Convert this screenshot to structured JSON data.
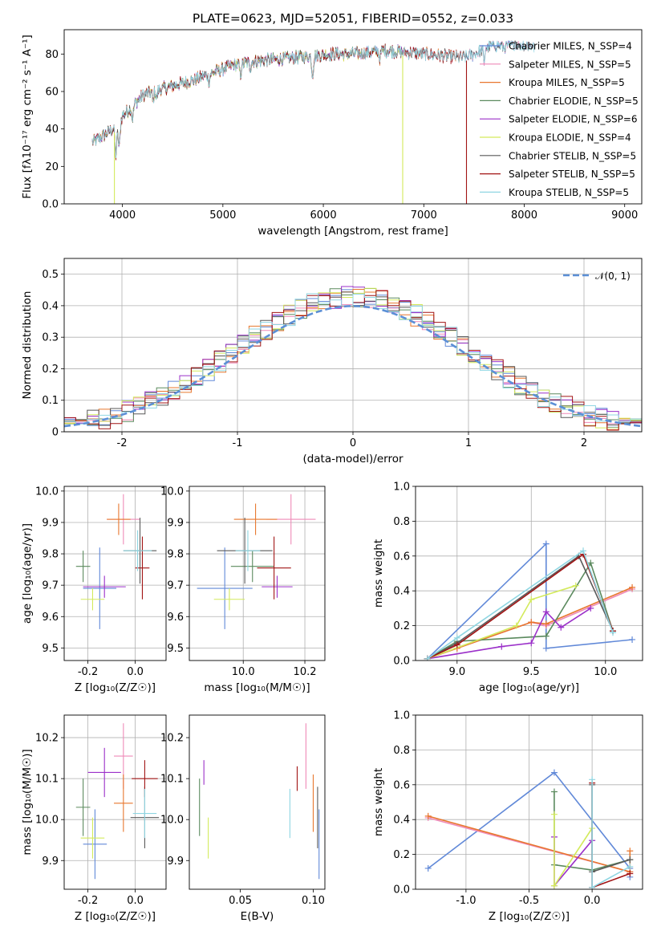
{
  "colors": {
    "series": [
      "#6189d8",
      "#ef8ab8",
      "#e8772e",
      "#5b8a5e",
      "#9b30c9",
      "#d3ea5c",
      "#595959",
      "#a11414",
      "#8fd6e2"
    ],
    "normal_curve": "#5b8fd6",
    "grid": "#b0b0b0"
  },
  "chart_data": [
    {
      "id": "spectrum",
      "type": "line",
      "title": "PLATE=0623, MJD=52051, FIBERID=0552, z=0.033",
      "xlabel": "wavelength [Angstrom, rest frame]",
      "ylabel": "Flux [fλ10⁻¹⁷ erg cm⁻² s⁻¹ A⁻¹]",
      "xlim": [
        3420,
        9170
      ],
      "ylim": [
        0,
        93
      ],
      "xticks": [
        4000,
        5000,
        6000,
        7000,
        8000,
        9000
      ],
      "yticks": [
        0,
        20,
        40,
        60,
        80
      ],
      "grid": false,
      "legend_position": "upper-right",
      "legend": [
        "Chabrier MILES, N_SSP=4",
        "Salpeter MILES, N_SSP=5",
        "Kroupa MILES, N_SSP=5",
        "Chabrier ELODIE, N_SSP=5",
        "Salpeter ELODIE, N_SSP=6",
        "Kroupa ELODIE, N_SSP=4",
        "Chabrier STELIB, N_SSP=5",
        "Salpeter STELIB, N_SSP=5",
        "Kroupa STELIB, N_SSP=5"
      ],
      "continuum": {
        "x": [
          3700,
          3800,
          3900,
          3950,
          4000,
          4100,
          4200,
          4300,
          4500,
          4700,
          4900,
          5100,
          5300,
          5500,
          5700,
          5900,
          6100,
          6300,
          6500,
          6600,
          6800,
          7000,
          7200,
          7400,
          7500,
          7600,
          7700,
          7800,
          7900,
          8000,
          8100
        ],
        "y": [
          33,
          36,
          40,
          40,
          47,
          52,
          58,
          60,
          63,
          66,
          70,
          74,
          76,
          77,
          78,
          79,
          80,
          80,
          81,
          82,
          81,
          80,
          79,
          78,
          80,
          83,
          85,
          84,
          86,
          85,
          84
        ]
      },
      "line_ends": [
        8100,
        8100,
        7400,
        6800,
        6800,
        6800,
        8100,
        7420,
        8100
      ],
      "drop_lines": [
        {
          "series": 5,
          "x": 3920
        },
        {
          "series": 5,
          "x": 6790
        },
        {
          "series": 7,
          "x": 7425
        }
      ]
    },
    {
      "id": "residuals",
      "type": "histogram",
      "xlabel": "(data-model)/error",
      "ylabel": "Normed distribution",
      "xlim": [
        -2.5,
        2.5
      ],
      "ylim": [
        0,
        0.55
      ],
      "xticks": [
        -2,
        -1,
        0,
        1,
        2
      ],
      "yticks": [
        0.0,
        0.1,
        0.2,
        0.3,
        0.4,
        0.5
      ],
      "grid": true,
      "bin_width": 0.1,
      "legend": [
        "𝒩(0, 1)"
      ],
      "legend_position": "upper-right",
      "normal_curve": {
        "mean": 0,
        "sigma": 1
      }
    },
    {
      "id": "age-vs-Z",
      "type": "scatter",
      "xlabel": "Z [log₁₀(Z/Z☉)]",
      "ylabel": "age  [log₁₀(age/yr)]",
      "xlim": [
        -0.3,
        0.13
      ],
      "ylim": [
        9.46,
        10.015
      ],
      "xticks": [
        -0.2,
        0.0
      ],
      "yticks": [
        9.5,
        9.6,
        9.7,
        9.8,
        9.9,
        10.0
      ],
      "grid": true,
      "points": [
        {
          "x": -0.15,
          "xerr": 0.07,
          "y": 9.69,
          "yerr": 0.13
        },
        {
          "x": -0.05,
          "xerr": 0.07,
          "y": 9.91,
          "yerr": 0.08
        },
        {
          "x": -0.07,
          "xerr": 0.05,
          "y": 9.91,
          "yerr": 0.05
        },
        {
          "x": -0.22,
          "xerr": 0.03,
          "y": 9.76,
          "yerr": 0.05
        },
        {
          "x": -0.13,
          "xerr": 0.09,
          "y": 9.695,
          "yerr": 0.035
        },
        {
          "x": -0.18,
          "xerr": 0.05,
          "y": 9.655,
          "yerr": 0.035
        },
        {
          "x": 0.02,
          "xerr": 0.07,
          "y": 9.81,
          "yerr": 0.105
        },
        {
          "x": 0.03,
          "xerr": 0.03,
          "y": 9.755,
          "yerr": 0.1
        },
        {
          "x": 0.01,
          "xerr": 0.06,
          "y": 9.81,
          "yerr": 0.065
        }
      ]
    },
    {
      "id": "age-vs-mass",
      "type": "scatter",
      "xlabel": "mass [log₁₀(M/M☉)]",
      "ylabel": "",
      "xlim": [
        9.825,
        10.265
      ],
      "ylim": [
        9.46,
        10.015
      ],
      "xticks": [
        10.0,
        10.2
      ],
      "yticks": [
        9.5,
        9.6,
        9.7,
        9.8,
        9.9,
        10.0
      ],
      "grid": true,
      "points": [
        {
          "x": 9.94,
          "xerr": 0.09,
          "y": 9.69,
          "yerr": 0.13
        },
        {
          "x": 10.155,
          "xerr": 0.08,
          "y": 9.91,
          "yerr": 0.08
        },
        {
          "x": 10.04,
          "xerr": 0.07,
          "y": 9.91,
          "yerr": 0.05
        },
        {
          "x": 10.03,
          "xerr": 0.07,
          "y": 9.76,
          "yerr": 0.05
        },
        {
          "x": 10.11,
          "xerr": 0.05,
          "y": 9.695,
          "yerr": 0.035
        },
        {
          "x": 9.955,
          "xerr": 0.05,
          "y": 9.655,
          "yerr": 0.035
        },
        {
          "x": 10.005,
          "xerr": 0.09,
          "y": 9.81,
          "yerr": 0.105
        },
        {
          "x": 10.1,
          "xerr": 0.055,
          "y": 9.755,
          "yerr": 0.1
        },
        {
          "x": 10.015,
          "xerr": 0.04,
          "y": 9.81,
          "yerr": 0.065
        }
      ]
    },
    {
      "id": "weight-vs-age",
      "type": "line",
      "xlabel": "age  [log₁₀(age/yr)]",
      "ylabel": "mass weight",
      "xlim": [
        8.72,
        10.25
      ],
      "ylim": [
        0,
        1
      ],
      "xticks": [
        9.0,
        9.5,
        10.0
      ],
      "yticks": [
        0.0,
        0.2,
        0.4,
        0.6,
        0.8,
        1.0
      ],
      "grid": true,
      "series": [
        {
          "x": [
            8.8,
            9.6,
            9.6,
            10.18
          ],
          "y": [
            0.01,
            0.67,
            0.07,
            0.12
          ]
        },
        {
          "x": [
            8.8,
            9.0,
            9.5,
            9.6,
            10.18
          ],
          "y": [
            0.01,
            0.07,
            0.22,
            0.2,
            0.41
          ]
        },
        {
          "x": [
            8.8,
            9.0,
            9.5,
            9.6,
            10.18
          ],
          "y": [
            0.01,
            0.07,
            0.22,
            0.21,
            0.42
          ]
        },
        {
          "x": [
            8.8,
            9.0,
            9.6,
            9.9,
            10.05
          ],
          "y": [
            0.01,
            0.11,
            0.14,
            0.56,
            0.17
          ]
        },
        {
          "x": [
            8.8,
            9.3,
            9.5,
            9.6,
            9.7,
            9.9
          ],
          "y": [
            0.01,
            0.08,
            0.1,
            0.28,
            0.19,
            0.3
          ]
        },
        {
          "x": [
            8.8,
            9.4,
            9.5,
            9.8
          ],
          "y": [
            0.01,
            0.2,
            0.35,
            0.43
          ]
        },
        {
          "x": [
            8.8,
            9.0,
            9.82,
            10.05
          ],
          "y": [
            0.01,
            0.1,
            0.6,
            0.17
          ]
        },
        {
          "x": [
            8.8,
            9.0,
            9.85,
            10.05
          ],
          "y": [
            0.01,
            0.09,
            0.61,
            0.17
          ]
        },
        {
          "x": [
            8.8,
            9.0,
            9.85,
            10.05
          ],
          "y": [
            0.01,
            0.13,
            0.63,
            0.16
          ]
        }
      ]
    },
    {
      "id": "mass-vs-Z",
      "type": "scatter",
      "xlabel": "Z [log₁₀(Z/Z☉)]",
      "ylabel": "mass [log₁₀(M/M☉)]",
      "xlim": [
        -0.3,
        0.13
      ],
      "ylim": [
        9.83,
        10.255
      ],
      "xticks": [
        -0.2,
        0.0
      ],
      "yticks": [
        9.9,
        10.0,
        10.1,
        10.2
      ],
      "grid": true,
      "points": [
        {
          "x": -0.17,
          "xerr": 0.05,
          "y": 9.94,
          "yerr": 0.085
        },
        {
          "x": -0.05,
          "xerr": 0.04,
          "y": 10.155,
          "yerr": 0.08
        },
        {
          "x": -0.05,
          "xerr": 0.04,
          "y": 10.04,
          "yerr": 0.07
        },
        {
          "x": -0.22,
          "xerr": 0.03,
          "y": 10.03,
          "yerr": 0.07
        },
        {
          "x": -0.13,
          "xerr": 0.07,
          "y": 10.115,
          "yerr": 0.06
        },
        {
          "x": -0.18,
          "xerr": 0.05,
          "y": 9.955,
          "yerr": 0.05
        },
        {
          "x": 0.04,
          "xerr": 0.06,
          "y": 10.005,
          "yerr": 0.075
        },
        {
          "x": 0.04,
          "xerr": 0.055,
          "y": 10.1,
          "yerr": 0.045
        },
        {
          "x": 0.04,
          "xerr": 0.05,
          "y": 10.015,
          "yerr": 0.06
        }
      ]
    },
    {
      "id": "mass-vs-ebv",
      "type": "scatter",
      "xlabel": "E(B-V)",
      "ylabel": "",
      "xlim": [
        0.015,
        0.108
      ],
      "ylim": [
        9.83,
        10.255
      ],
      "xticks": [
        0.05,
        0.1
      ],
      "yticks": [
        9.9,
        10.0,
        10.1,
        10.2
      ],
      "grid": false,
      "points": [
        {
          "x": 0.104,
          "y": 9.94,
          "yerr": 0.085
        },
        {
          "x": 0.095,
          "y": 10.155,
          "yerr": 0.08
        },
        {
          "x": 0.1,
          "y": 10.04,
          "yerr": 0.07
        },
        {
          "x": 0.022,
          "y": 10.03,
          "yerr": 0.07
        },
        {
          "x": 0.025,
          "y": 10.115,
          "yerr": 0.03
        },
        {
          "x": 0.028,
          "y": 9.955,
          "yerr": 0.05
        },
        {
          "x": 0.103,
          "y": 10.005,
          "yerr": 0.075
        },
        {
          "x": 0.089,
          "y": 10.1,
          "yerr": 0.03
        },
        {
          "x": 0.084,
          "y": 10.015,
          "yerr": 0.06
        }
      ]
    },
    {
      "id": "weight-vs-Z",
      "type": "line",
      "xlabel": "Z [log₁₀(Z/Z☉)]",
      "ylabel": "mass weight",
      "xlim": [
        -1.4,
        0.4
      ],
      "ylim": [
        0,
        1
      ],
      "xticks": [
        -1.0,
        -0.5,
        0.0
      ],
      "yticks": [
        0.0,
        0.2,
        0.4,
        0.6,
        0.8,
        1.0
      ],
      "grid": true,
      "series": [
        {
          "x": [
            -1.3,
            -0.3,
            0.3,
            0.3
          ],
          "y": [
            0.12,
            0.67,
            0.12,
            0.07
          ]
        },
        {
          "x": [
            -1.3,
            0.3
          ],
          "y": [
            0.41,
            0.1
          ]
        },
        {
          "x": [
            -1.3,
            0.3,
            0.3
          ],
          "y": [
            0.42,
            0.1,
            0.22
          ]
        },
        {
          "x": [
            -0.3,
            -0.3,
            0.0,
            0.3
          ],
          "y": [
            0.56,
            0.14,
            0.11,
            0.17
          ]
        },
        {
          "x": [
            -0.3,
            -0.3,
            0.0
          ],
          "y": [
            0.3,
            0.02,
            0.28
          ]
        },
        {
          "x": [
            -0.3,
            -0.3,
            0.0
          ],
          "y": [
            0.43,
            0.02,
            0.35
          ]
        },
        {
          "x": [
            0.0,
            0.0,
            0.3
          ],
          "y": [
            0.6,
            0.1,
            0.17
          ]
        },
        {
          "x": [
            0.0,
            0.0,
            0.3
          ],
          "y": [
            0.61,
            0.01,
            0.09
          ]
        },
        {
          "x": [
            0.0,
            0.0,
            0.3
          ],
          "y": [
            0.63,
            0.01,
            0.13
          ]
        }
      ]
    }
  ]
}
